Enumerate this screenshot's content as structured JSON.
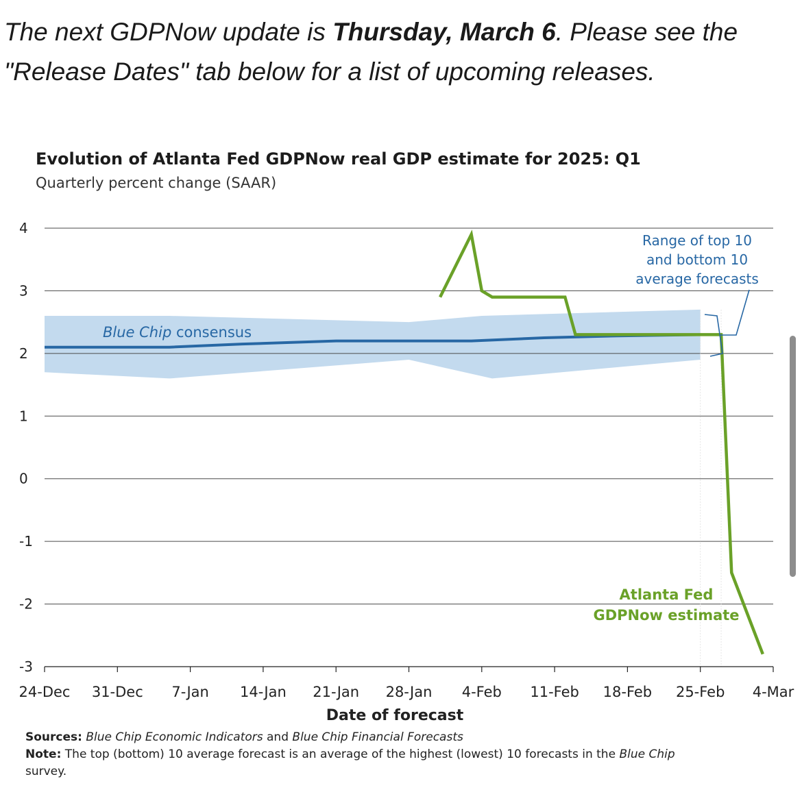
{
  "intro": {
    "prefix": "The next GDPNow update is ",
    "date": "Thursday, March 6",
    "suffix": ". Please see the \"Release Dates\" tab below for a list of upcoming releases."
  },
  "chart_data": {
    "type": "line",
    "title": "Evolution of Atlanta Fed GDPNow real GDP estimate for 2025: Q1",
    "subtitle": "Quarterly percent change (SAAR)",
    "xlabel": "Date of forecast",
    "ylabel": "",
    "x_tick_labels": [
      "24-Dec",
      "31-Dec",
      "7-Jan",
      "14-Jan",
      "21-Jan",
      "28-Jan",
      "4-Feb",
      "11-Feb",
      "18-Feb",
      "25-Feb",
      "4-Mar"
    ],
    "xlim_days": [
      0,
      70
    ],
    "ylim": [
      -3,
      4
    ],
    "y_ticks": [
      4,
      3,
      2,
      1,
      0,
      -1,
      -2,
      -3
    ],
    "grid": "horizontal",
    "series": [
      {
        "name": "Blue Chip consensus",
        "color": "#2767a4",
        "points": [
          [
            0,
            2.1
          ],
          [
            6,
            2.1
          ],
          [
            12,
            2.1
          ],
          [
            19,
            2.15
          ],
          [
            28,
            2.2
          ],
          [
            34,
            2.2
          ],
          [
            41,
            2.2
          ],
          [
            48,
            2.25
          ],
          [
            55,
            2.28
          ],
          [
            63,
            2.3
          ]
        ]
      },
      {
        "name": "Atlanta Fed GDPNow estimate",
        "color": "#6aa128",
        "points": [
          [
            38,
            2.9
          ],
          [
            41,
            3.9
          ],
          [
            42,
            3.0
          ],
          [
            43,
            2.9
          ],
          [
            50,
            2.9
          ],
          [
            51,
            2.3
          ],
          [
            57,
            2.3
          ],
          [
            64,
            2.3
          ],
          [
            65,
            2.3
          ],
          [
            66,
            -1.5
          ],
          [
            69,
            -2.8
          ]
        ]
      }
    ],
    "band": {
      "name": "Range of top 10 and bottom 10 average forecasts",
      "color": "#c3daee",
      "upper": [
        [
          0,
          2.6
        ],
        [
          12,
          2.6
        ],
        [
          35,
          2.5
        ],
        [
          42,
          2.6
        ],
        [
          63,
          2.7
        ]
      ],
      "lower": [
        [
          0,
          1.7
        ],
        [
          12,
          1.6
        ],
        [
          35,
          1.9
        ],
        [
          43,
          1.6
        ],
        [
          63,
          1.9
        ]
      ]
    },
    "annotations": {
      "band_label": [
        "Range of top 10",
        "and bottom 10",
        "average forecasts"
      ],
      "consensus_label_italic": "Blue Chip",
      "consensus_label_rest": " consensus",
      "gdpnow_label": [
        "Atlanta Fed",
        "GDPNow estimate"
      ]
    }
  },
  "sources": {
    "sources_label": "Sources:",
    "sources_text_1": "Blue Chip Economic Indicators",
    "sources_and": " and ",
    "sources_text_2": "Blue Chip Financial Forecasts",
    "note_label": "Note:",
    "note_text": " The top (bottom) 10 average forecast is an average of the highest (lowest) 10 forecasts in the ",
    "note_italic": "Blue Chip",
    "note_end": " survey."
  }
}
